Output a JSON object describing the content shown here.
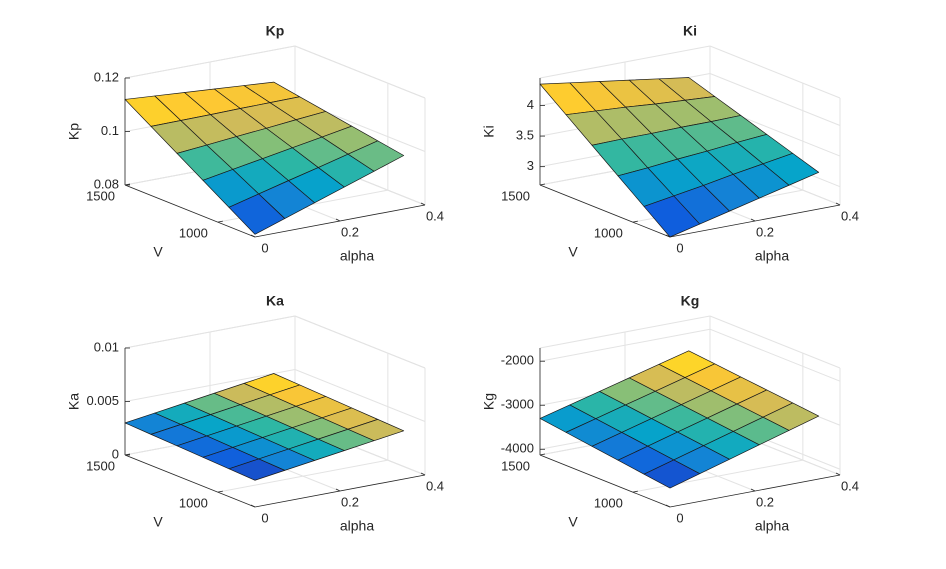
{
  "chart_data": [
    {
      "type": "surface",
      "title": "Kp",
      "xlabel": "alpha",
      "ylabel": "V",
      "zlabel": "Kp",
      "colormap": "parula",
      "grid": true,
      "x": [
        0,
        0.07,
        0.14,
        0.21,
        0.28,
        0.35
      ],
      "y": [
        800,
        940,
        1080,
        1220,
        1360,
        1500
      ],
      "z": [
        [
          0.081,
          0.0848,
          0.0886,
          0.0924,
          0.0962,
          0.1
        ],
        [
          0.0872,
          0.0901,
          0.093,
          0.0958,
          0.0987,
          0.1016
        ],
        [
          0.0934,
          0.0954,
          0.0973,
          0.0993,
          0.1012,
          0.1032
        ],
        [
          0.0996,
          0.1006,
          0.1017,
          0.1027,
          0.1038,
          0.1048
        ],
        [
          0.1058,
          0.1059,
          0.106,
          0.1062,
          0.1063,
          0.1064
        ],
        [
          0.112,
          0.1112,
          0.1104,
          0.1096,
          0.1088,
          0.108
        ]
      ],
      "xlim": [
        0,
        0.4
      ],
      "ylim": [
        800,
        1500
      ],
      "zlim": [
        0.08,
        0.12
      ],
      "xticks": [
        0,
        0.2,
        0.4
      ],
      "yticks": [
        1000,
        1500
      ],
      "zticks": [
        0.08,
        0.1,
        0.12
      ]
    },
    {
      "type": "surface",
      "title": "Ki",
      "xlabel": "alpha",
      "ylabel": "V",
      "zlabel": "Ki",
      "colormap": "parula",
      "grid": true,
      "x": [
        0,
        0.07,
        0.14,
        0.21,
        0.28,
        0.35
      ],
      "y": [
        800,
        940,
        1080,
        1220,
        1360,
        1500
      ],
      "z": [
        [
          2.7,
          2.82,
          2.94,
          3.06,
          3.18,
          3.3
        ],
        [
          3.03,
          3.11,
          3.19,
          3.28,
          3.36,
          3.44
        ],
        [
          3.36,
          3.4,
          3.45,
          3.49,
          3.54,
          3.58
        ],
        [
          3.69,
          3.7,
          3.7,
          3.71,
          3.71,
          3.72
        ],
        [
          4.02,
          3.99,
          3.96,
          3.92,
          3.89,
          3.86
        ],
        [
          4.35,
          4.28,
          4.21,
          4.14,
          4.07,
          4.0
        ]
      ],
      "xlim": [
        0,
        0.4
      ],
      "ylim": [
        800,
        1500
      ],
      "zlim": [
        2.7,
        4.45
      ],
      "xticks": [
        0,
        0.2,
        0.4
      ],
      "yticks": [
        1000,
        1500
      ],
      "zticks": [
        3,
        3.5,
        4
      ]
    },
    {
      "type": "surface",
      "title": "Ka",
      "xlabel": "alpha",
      "ylabel": "V",
      "zlabel": "Ka",
      "colormap": "parula",
      "grid": true,
      "x": [
        0,
        0.07,
        0.14,
        0.21,
        0.28,
        0.35
      ],
      "y": [
        800,
        940,
        1080,
        1220,
        1360,
        1500
      ],
      "z": [
        [
          0.0025,
          0.0029,
          0.0033,
          0.0037,
          0.0041,
          0.0045
        ],
        [
          0.0026,
          0.003,
          0.0034,
          0.0038,
          0.0042,
          0.0046
        ],
        [
          0.0027,
          0.0031,
          0.0035,
          0.0039,
          0.0043,
          0.0047
        ],
        [
          0.0028,
          0.0032,
          0.0036,
          0.004,
          0.0044,
          0.0048
        ],
        [
          0.0029,
          0.0033,
          0.0037,
          0.0041,
          0.0045,
          0.0049
        ],
        [
          0.003,
          0.0034,
          0.0038,
          0.0042,
          0.0046,
          0.005
        ]
      ],
      "xlim": [
        0,
        0.4
      ],
      "ylim": [
        800,
        1500
      ],
      "zlim": [
        0,
        0.01
      ],
      "xticks": [
        0,
        0.2,
        0.4
      ],
      "yticks": [
        1000,
        1500
      ],
      "zticks": [
        0,
        0.005,
        0.01
      ]
    },
    {
      "type": "surface",
      "title": "Kg",
      "xlabel": "alpha",
      "ylabel": "V",
      "zlabel": "Kg",
      "colormap": "parula",
      "grid": true,
      "x": [
        0,
        0.07,
        0.14,
        0.21,
        0.28,
        0.35
      ],
      "y": [
        800,
        940,
        1080,
        1220,
        1360,
        1500
      ],
      "z": [
        [
          -3700,
          -3500,
          -3300,
          -3100,
          -2900,
          -2700
        ],
        [
          -3620,
          -3424,
          -3228,
          -3032,
          -2836,
          -2640
        ],
        [
          -3540,
          -3348,
          -3156,
          -2964,
          -2772,
          -2580
        ],
        [
          -3460,
          -3272,
          -3084,
          -2896,
          -2708,
          -2520
        ],
        [
          -3380,
          -3196,
          -3012,
          -2828,
          -2644,
          -2460
        ],
        [
          -3300,
          -3120,
          -2940,
          -2760,
          -2580,
          -2400
        ]
      ],
      "xlim": [
        0,
        0.4
      ],
      "ylim": [
        800,
        1500
      ],
      "zlim": [
        -4130,
        -1700
      ],
      "xticks": [
        0,
        0.2,
        0.4
      ],
      "yticks": [
        1000,
        1500
      ],
      "zticks": [
        -4000,
        -3000,
        -2000
      ]
    }
  ]
}
